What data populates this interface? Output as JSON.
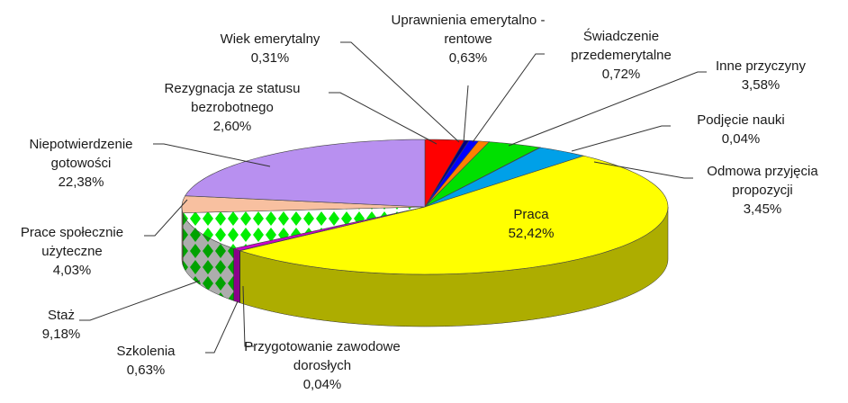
{
  "chart_data": {
    "type": "pie3d",
    "categories": [
      "Rezygnacja ze statusu bezrobotnego",
      "Wiek emerytalny",
      "Uprawnienia emerytalno - rentowe",
      "Świadczenie przedemerytalne",
      "Inne przyczyny",
      "Podjęcie nauki",
      "Odmowa przyjęcia propozycji",
      "Praca",
      "Przygotowanie zawodowe dorosłych",
      "Szkolenia",
      "Staż",
      "Prace społecznie użyteczne",
      "Niepotwierdzenie gotowości"
    ],
    "values": [
      2.6,
      0.31,
      0.63,
      0.72,
      3.58,
      0.04,
      3.45,
      52.42,
      0.04,
      0.63,
      9.18,
      4.03,
      22.38
    ],
    "value_labels": [
      "2,60%",
      "0,31%",
      "0,63%",
      "0,72%",
      "3,58%",
      "0,04%",
      "3,45%",
      "52,42%",
      "0,04%",
      "0,63%",
      "9,18%",
      "4,03%",
      "22,38%"
    ],
    "colors": [
      "#ff0000",
      "#000080",
      "#0000ff",
      "#ff8000",
      "#00e000",
      "#006000",
      "#00a0e8",
      "#ffff00",
      "#6060ff",
      "#cc00cc",
      "#00ee00",
      "#f8c0a0",
      "#b890f0"
    ],
    "hatch": [
      null,
      null,
      null,
      null,
      null,
      null,
      null,
      null,
      null,
      null,
      "diamonds",
      null,
      null
    ]
  }
}
